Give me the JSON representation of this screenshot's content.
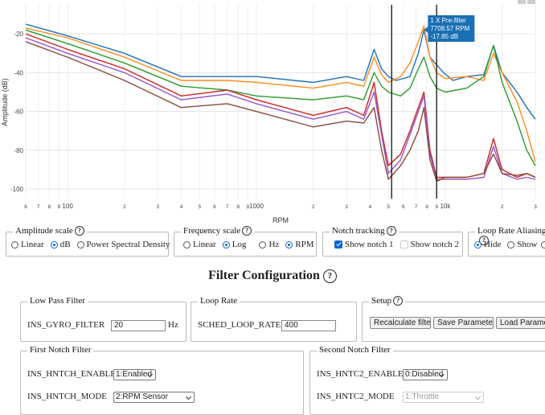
{
  "chart_data": {
    "type": "line",
    "xlabel": "RPM",
    "ylabel": "Amplitude (dB)",
    "xscale": "log",
    "xlim": [
      60,
      30000
    ],
    "ylim": [
      -105,
      -5
    ],
    "y_ticks": [
      "-20",
      "-40",
      "-60",
      "-80",
      "-100"
    ],
    "x_ticks": [
      {
        "v": 60,
        "t": "6"
      },
      {
        "v": 70,
        "t": "7"
      },
      {
        "v": 80,
        "t": "8"
      },
      {
        "v": 90,
        "t": "9"
      },
      {
        "v": 100,
        "t": "100"
      },
      {
        "v": 200,
        "t": "2"
      },
      {
        "v": 300,
        "t": "3"
      },
      {
        "v": 400,
        "t": "4"
      },
      {
        "v": 500,
        "t": "5"
      },
      {
        "v": 600,
        "t": "6"
      },
      {
        "v": 700,
        "t": "7"
      },
      {
        "v": 800,
        "t": "8"
      },
      {
        "v": 900,
        "t": "9"
      },
      {
        "v": 1000,
        "t": "1000"
      },
      {
        "v": 2000,
        "t": "2"
      },
      {
        "v": 3000,
        "t": "3"
      },
      {
        "v": 4000,
        "t": "4"
      },
      {
        "v": 5000,
        "t": "5"
      },
      {
        "v": 6000,
        "t": "6"
      },
      {
        "v": 7000,
        "t": "7"
      },
      {
        "v": 8000,
        "t": "8"
      },
      {
        "v": 9000,
        "t": "9"
      },
      {
        "v": 10000,
        "t": "10k"
      },
      {
        "v": 20000,
        "t": "2"
      },
      {
        "v": 30000,
        "t": "3"
      }
    ],
    "vlines": [
      5200,
      9000
    ],
    "tooltip": {
      "lines": [
        "1 X Pre-filter",
        "7708.57 RPM",
        "-17.85 dB"
      ],
      "x": 7708.57,
      "y": -17.85,
      "color": "#1a6fb5"
    },
    "series": [
      {
        "color": "#1f6fb8",
        "points": [
          [
            60,
            -15
          ],
          [
            100,
            -21
          ],
          [
            200,
            -30
          ],
          [
            400,
            -42
          ],
          [
            700,
            -42
          ],
          [
            1000,
            -42
          ],
          [
            2000,
            -45
          ],
          [
            3000,
            -42
          ],
          [
            3700,
            -44
          ],
          [
            4200,
            -28
          ],
          [
            4600,
            -38
          ],
          [
            5000,
            -42
          ],
          [
            5500,
            -44
          ],
          [
            6500,
            -42
          ],
          [
            7200,
            -30
          ],
          [
            7708,
            -18
          ],
          [
            8300,
            -32
          ],
          [
            9000,
            -36
          ],
          [
            9800,
            -40
          ],
          [
            11000,
            -44
          ],
          [
            13000,
            -42
          ],
          [
            16000,
            -41
          ],
          [
            18000,
            -26
          ],
          [
            20000,
            -40
          ],
          [
            24000,
            -50
          ],
          [
            27000,
            -58
          ],
          [
            30000,
            -64
          ]
        ]
      },
      {
        "color": "#ff8a1c",
        "points": [
          [
            60,
            -17
          ],
          [
            100,
            -22
          ],
          [
            200,
            -32
          ],
          [
            400,
            -44
          ],
          [
            700,
            -44
          ],
          [
            1000,
            -45
          ],
          [
            2000,
            -48
          ],
          [
            3000,
            -45
          ],
          [
            3700,
            -47
          ],
          [
            4200,
            -32
          ],
          [
            4600,
            -41
          ],
          [
            5000,
            -45
          ],
          [
            5800,
            -42
          ],
          [
            6500,
            -35
          ],
          [
            7200,
            -24
          ],
          [
            7708,
            -16
          ],
          [
            8300,
            -32
          ],
          [
            9000,
            -40
          ],
          [
            10000,
            -43
          ],
          [
            13000,
            -42
          ],
          [
            16000,
            -44
          ],
          [
            18000,
            -30
          ],
          [
            20000,
            -40
          ],
          [
            24000,
            -55
          ],
          [
            27000,
            -70
          ],
          [
            30000,
            -86
          ]
        ]
      },
      {
        "color": "#2b9a2b",
        "points": [
          [
            60,
            -18
          ],
          [
            100,
            -25
          ],
          [
            200,
            -35
          ],
          [
            400,
            -47
          ],
          [
            700,
            -49
          ],
          [
            1000,
            -52
          ],
          [
            2000,
            -54
          ],
          [
            3000,
            -52
          ],
          [
            3700,
            -54
          ],
          [
            4200,
            -40
          ],
          [
            4600,
            -47
          ],
          [
            5000,
            -50
          ],
          [
            5800,
            -52
          ],
          [
            6500,
            -48
          ],
          [
            7200,
            -38
          ],
          [
            7708,
            -32
          ],
          [
            8300,
            -42
          ],
          [
            9000,
            -48
          ],
          [
            10000,
            -50
          ],
          [
            13000,
            -48
          ],
          [
            16000,
            -42
          ],
          [
            18000,
            -26
          ],
          [
            20000,
            -45
          ],
          [
            24000,
            -65
          ],
          [
            27000,
            -80
          ],
          [
            30000,
            -88
          ]
        ]
      },
      {
        "color": "#cc2222",
        "points": [
          [
            60,
            -20
          ],
          [
            100,
            -28
          ],
          [
            200,
            -38
          ],
          [
            400,
            -52
          ],
          [
            700,
            -49
          ],
          [
            1000,
            -54
          ],
          [
            2000,
            -62
          ],
          [
            3000,
            -58
          ],
          [
            3700,
            -62
          ],
          [
            4200,
            -45
          ],
          [
            4600,
            -70
          ],
          [
            5000,
            -88
          ],
          [
            5800,
            -82
          ],
          [
            6500,
            -70
          ],
          [
            7200,
            -58
          ],
          [
            7708,
            -50
          ],
          [
            8300,
            -80
          ],
          [
            9000,
            -94
          ],
          [
            10000,
            -94
          ],
          [
            13000,
            -94
          ],
          [
            16000,
            -92
          ],
          [
            18000,
            -74
          ],
          [
            20000,
            -90
          ],
          [
            24000,
            -94
          ],
          [
            27000,
            -92
          ],
          [
            30000,
            -94
          ]
        ]
      },
      {
        "color": "#9a55c8",
        "points": [
          [
            60,
            -22
          ],
          [
            100,
            -30
          ],
          [
            200,
            -40
          ],
          [
            400,
            -54
          ],
          [
            700,
            -51
          ],
          [
            1000,
            -56
          ],
          [
            2000,
            -64
          ],
          [
            3000,
            -60
          ],
          [
            3700,
            -64
          ],
          [
            4200,
            -50
          ],
          [
            4600,
            -72
          ],
          [
            5000,
            -92
          ],
          [
            5800,
            -85
          ],
          [
            6500,
            -72
          ],
          [
            7200,
            -60
          ],
          [
            7708,
            -52
          ],
          [
            8300,
            -82
          ],
          [
            9000,
            -95
          ],
          [
            10000,
            -95
          ],
          [
            13000,
            -95
          ],
          [
            16000,
            -94
          ],
          [
            18000,
            -78
          ],
          [
            20000,
            -92
          ],
          [
            24000,
            -95
          ],
          [
            27000,
            -94
          ],
          [
            30000,
            -95
          ]
        ]
      },
      {
        "color": "#8b4a3a",
        "points": [
          [
            60,
            -24
          ],
          [
            100,
            -32
          ],
          [
            200,
            -44
          ],
          [
            400,
            -58
          ],
          [
            700,
            -56
          ],
          [
            1000,
            -60
          ],
          [
            2000,
            -68
          ],
          [
            3000,
            -65
          ],
          [
            3700,
            -66
          ],
          [
            4200,
            -58
          ],
          [
            4600,
            -80
          ],
          [
            5000,
            -95
          ],
          [
            5800,
            -88
          ],
          [
            6500,
            -80
          ],
          [
            7200,
            -70
          ],
          [
            7708,
            -58
          ],
          [
            8300,
            -85
          ],
          [
            9000,
            -96
          ],
          [
            10000,
            -94
          ],
          [
            13000,
            -94
          ],
          [
            16000,
            -92
          ],
          [
            18000,
            -82
          ],
          [
            20000,
            -92
          ],
          [
            24000,
            -93
          ],
          [
            27000,
            -92
          ],
          [
            30000,
            -94
          ]
        ]
      }
    ]
  },
  "controls": {
    "amplitude": {
      "legend": "Amplitude scale",
      "opt1": "Linear",
      "opt2": "dB",
      "opt3": "Power Spectral Density",
      "selected": "dB"
    },
    "frequency": {
      "legend": "Frequency scale",
      "opt1": "Linear",
      "opt2": "Log",
      "opt3": "Hz",
      "opt4": "RPM",
      "selected_scale": "Log",
      "selected_unit": "RPM"
    },
    "notch": {
      "legend": "Notch tracking",
      "opt1": "Show notch 1",
      "opt2": "Show notch 2",
      "notch1_checked": true,
      "notch2_checked": false
    },
    "aliasing": {
      "legend": "Loop Rate Aliasing",
      "opt1": "Hide",
      "opt2": "Show",
      "selected": "Hide"
    }
  },
  "help_glyph": "?",
  "filter_config": {
    "title": "Filter Configuration",
    "low_pass": {
      "legend": "Low Pass Filter",
      "label": "INS_GYRO_FILTER",
      "value": "20",
      "unit": "Hz"
    },
    "loop_rate": {
      "legend": "Loop Rate",
      "label": "SCHED_LOOP_RATE",
      "value": "400"
    },
    "setup": {
      "legend": "Setup",
      "recalc": "Recalculate filters",
      "save": "Save Parameters",
      "load": "Load Parameters"
    },
    "notch1": {
      "legend": "First Notch Filter",
      "enable_label": "INS_HNTCH_ENABLE",
      "enable_value": "1:Enabled",
      "mode_label": "INS_HNTCH_MODE",
      "mode_value": "2:RPM Sensor"
    },
    "notch2": {
      "legend": "Second Notch Filter",
      "enable_label": "INS_HNTC2_ENABLE",
      "enable_value": "0:Disabled",
      "mode_label": "INS_HNTC2_MODE",
      "mode_value": "1:Throttle"
    }
  }
}
